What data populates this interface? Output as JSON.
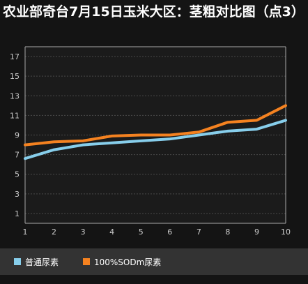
{
  "title": "农业部奇台7月15日玉米大区：茎粗对比图（点3）",
  "colors": {
    "background": "#141414",
    "plot_background": "#1b1b1b",
    "axis": "#aaaaaa",
    "gridline": "#4a4a4a",
    "text": "#cccccc",
    "legend_background": "#333333"
  },
  "chart_data": {
    "type": "line",
    "title": "农业部奇台7月15日玉米大区：茎粗对比图（点3）",
    "x": [
      1,
      2,
      3,
      4,
      5,
      6,
      7,
      8,
      9,
      10
    ],
    "xlim": [
      1,
      10
    ],
    "ylim": [
      0,
      18
    ],
    "yticks": [
      1,
      3,
      5,
      7,
      9,
      11,
      13,
      15,
      17
    ],
    "grid": true,
    "legend_placement": "bottom-left",
    "series": [
      {
        "name": "普通尿素",
        "color": "#87ceeb",
        "values": [
          6.6,
          7.5,
          8.0,
          8.2,
          8.4,
          8.6,
          9.0,
          9.4,
          9.6,
          10.5
        ]
      },
      {
        "name": "100%SODm尿素",
        "color": "#f58220",
        "values": [
          8.0,
          8.3,
          8.4,
          8.9,
          9.0,
          9.0,
          9.3,
          10.3,
          10.5,
          12.0
        ]
      }
    ]
  }
}
